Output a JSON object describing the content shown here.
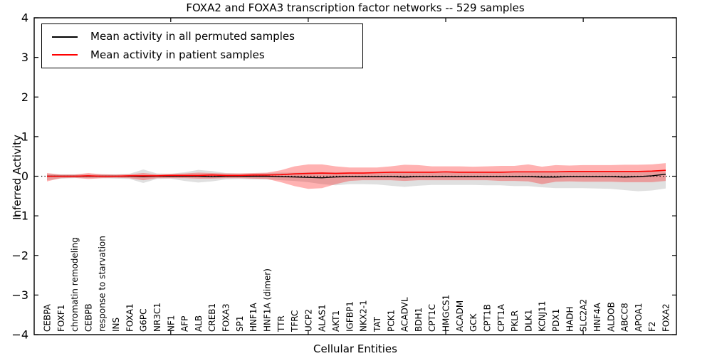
{
  "figure": {
    "title": "FOXA2 and FOXA3 transcription factor networks -- 529 samples",
    "xlabel": "Cellular Entities",
    "ylabel": "Inferred Activity"
  },
  "legend": {
    "entries": [
      {
        "label": "Mean activity in all permuted samples",
        "color": "#000000"
      },
      {
        "label": "Mean activity in patient samples",
        "color": "#ff0000"
      }
    ]
  },
  "colors": {
    "permuted_line": "#000000",
    "patient_line": "#ff0000",
    "permuted_band": "rgba(0,0,0,0.12)",
    "patient_band": "rgba(255,0,0,0.30)",
    "axis": "#000000"
  },
  "chart_data": {
    "type": "line",
    "title": "FOXA2 and FOXA3 transcription factor networks -- 529 samples",
    "xlabel": "Cellular Entities",
    "ylabel": "Inferred Activity",
    "ylim": [
      -4,
      4
    ],
    "yticks": [
      4,
      3,
      2,
      1,
      0,
      -1,
      -2,
      -3,
      -4
    ],
    "ytick_labels": [
      "4",
      "3",
      "2",
      "1",
      "0",
      "−1",
      "−2",
      "−3",
      "−4"
    ],
    "x_major_tick_indices": [
      9,
      19,
      29,
      39
    ],
    "zero_line": 0,
    "legend_position": "upper left",
    "grid": false,
    "categories": [
      "CEBPA",
      "FOXF1",
      "chromatin remodeling",
      "CEBPB",
      "response to starvation",
      "INS",
      "FOXA1",
      "G6PC",
      "NR3C1",
      "NF1",
      "AFP",
      "ALB",
      "CREB1",
      "FOXA3",
      "SP1",
      "HNF1A",
      "HNF1A (dimer)",
      "TTR",
      "TFRC",
      "UCP2",
      "ALAS1",
      "AKT1",
      "IGFBP1",
      "NKX2-1",
      "TAT",
      "PCK1",
      "ACADVL",
      "BDH1",
      "CPT1C",
      "HMGCS1",
      "ACADM",
      "GCK",
      "CPT1B",
      "CPT1A",
      "PKLR",
      "DLK1",
      "KCNJ11",
      "PDX1",
      "HADH",
      "SLC2A2",
      "HNF4A",
      "ALDOB",
      "ABCC8",
      "APOA1",
      "F2",
      "FOXA2"
    ],
    "series": [
      {
        "name": "Mean activity in all permuted samples",
        "values": [
          0,
          0,
          0,
          0,
          0,
          0,
          0,
          -0.01,
          0,
          0,
          0,
          0,
          -0.01,
          0,
          0,
          0,
          0,
          -0.01,
          -0.02,
          -0.03,
          -0.04,
          -0.02,
          -0.01,
          -0.01,
          -0.01,
          -0.01,
          -0.02,
          -0.01,
          -0.01,
          -0.01,
          -0.01,
          -0.01,
          -0.01,
          -0.01,
          -0.01,
          -0.01,
          -0.02,
          -0.02,
          -0.01,
          -0.01,
          -0.01,
          -0.01,
          -0.02,
          -0.01,
          0.01,
          0.05
        ],
        "band_upper": [
          0.06,
          0.05,
          0.05,
          0.05,
          0.05,
          0.05,
          0.06,
          0.17,
          0.07,
          0.06,
          0.1,
          0.16,
          0.13,
          0.08,
          0.07,
          0.07,
          0.08,
          0.09,
          0.09,
          0.1,
          0.1,
          0.1,
          0.1,
          0.1,
          0.11,
          0.12,
          0.12,
          0.12,
          0.12,
          0.12,
          0.12,
          0.12,
          0.12,
          0.12,
          0.12,
          0.12,
          0.12,
          0.12,
          0.12,
          0.12,
          0.12,
          0.12,
          0.13,
          0.13,
          0.13,
          0.12
        ],
        "band_lower": [
          -0.1,
          -0.06,
          -0.05,
          -0.05,
          -0.05,
          -0.06,
          -0.07,
          -0.17,
          -0.07,
          -0.06,
          -0.12,
          -0.16,
          -0.13,
          -0.08,
          -0.07,
          -0.08,
          -0.08,
          -0.1,
          -0.12,
          -0.15,
          -0.2,
          -0.23,
          -0.2,
          -0.2,
          -0.21,
          -0.24,
          -0.27,
          -0.24,
          -0.22,
          -0.22,
          -0.22,
          -0.22,
          -0.23,
          -0.23,
          -0.25,
          -0.25,
          -0.28,
          -0.3,
          -0.3,
          -0.3,
          -0.31,
          -0.32,
          -0.35,
          -0.38,
          -0.36,
          -0.31
        ]
      },
      {
        "name": "Mean activity in patient samples",
        "values": [
          0,
          0,
          0,
          0.01,
          0,
          0,
          0.01,
          0.01,
          0.01,
          0.02,
          0.02,
          0.02,
          0.03,
          0.02,
          0.02,
          0.03,
          0.03,
          0.04,
          0.06,
          0.07,
          0.08,
          0.07,
          0.08,
          0.08,
          0.09,
          0.1,
          0.1,
          0.1,
          0.1,
          0.11,
          0.1,
          0.1,
          0.1,
          0.1,
          0.11,
          0.11,
          0.11,
          0.11,
          0.12,
          0.12,
          0.12,
          0.12,
          0.12,
          0.12,
          0.13,
          0.15
        ],
        "band_upper": [
          0.08,
          0.04,
          0.04,
          0.08,
          0.05,
          0.04,
          0.05,
          0.08,
          0.05,
          0.06,
          0.07,
          0.09,
          0.08,
          0.07,
          0.07,
          0.08,
          0.09,
          0.15,
          0.25,
          0.3,
          0.3,
          0.25,
          0.22,
          0.22,
          0.22,
          0.25,
          0.29,
          0.28,
          0.25,
          0.25,
          0.25,
          0.24,
          0.25,
          0.26,
          0.26,
          0.3,
          0.24,
          0.28,
          0.27,
          0.28,
          0.28,
          0.28,
          0.29,
          0.29,
          0.3,
          0.33
        ],
        "band_lower": [
          -0.13,
          -0.05,
          -0.04,
          -0.07,
          -0.05,
          -0.04,
          -0.05,
          -0.1,
          -0.05,
          -0.05,
          -0.05,
          -0.06,
          -0.06,
          -0.05,
          -0.05,
          -0.06,
          -0.07,
          -0.15,
          -0.25,
          -0.32,
          -0.3,
          -0.2,
          -0.12,
          -0.1,
          -0.1,
          -0.1,
          -0.12,
          -0.1,
          -0.1,
          -0.1,
          -0.1,
          -0.1,
          -0.1,
          -0.12,
          -0.12,
          -0.13,
          -0.2,
          -0.14,
          -0.13,
          -0.14,
          -0.14,
          -0.14,
          -0.15,
          -0.15,
          -0.15,
          -0.12
        ]
      }
    ]
  }
}
